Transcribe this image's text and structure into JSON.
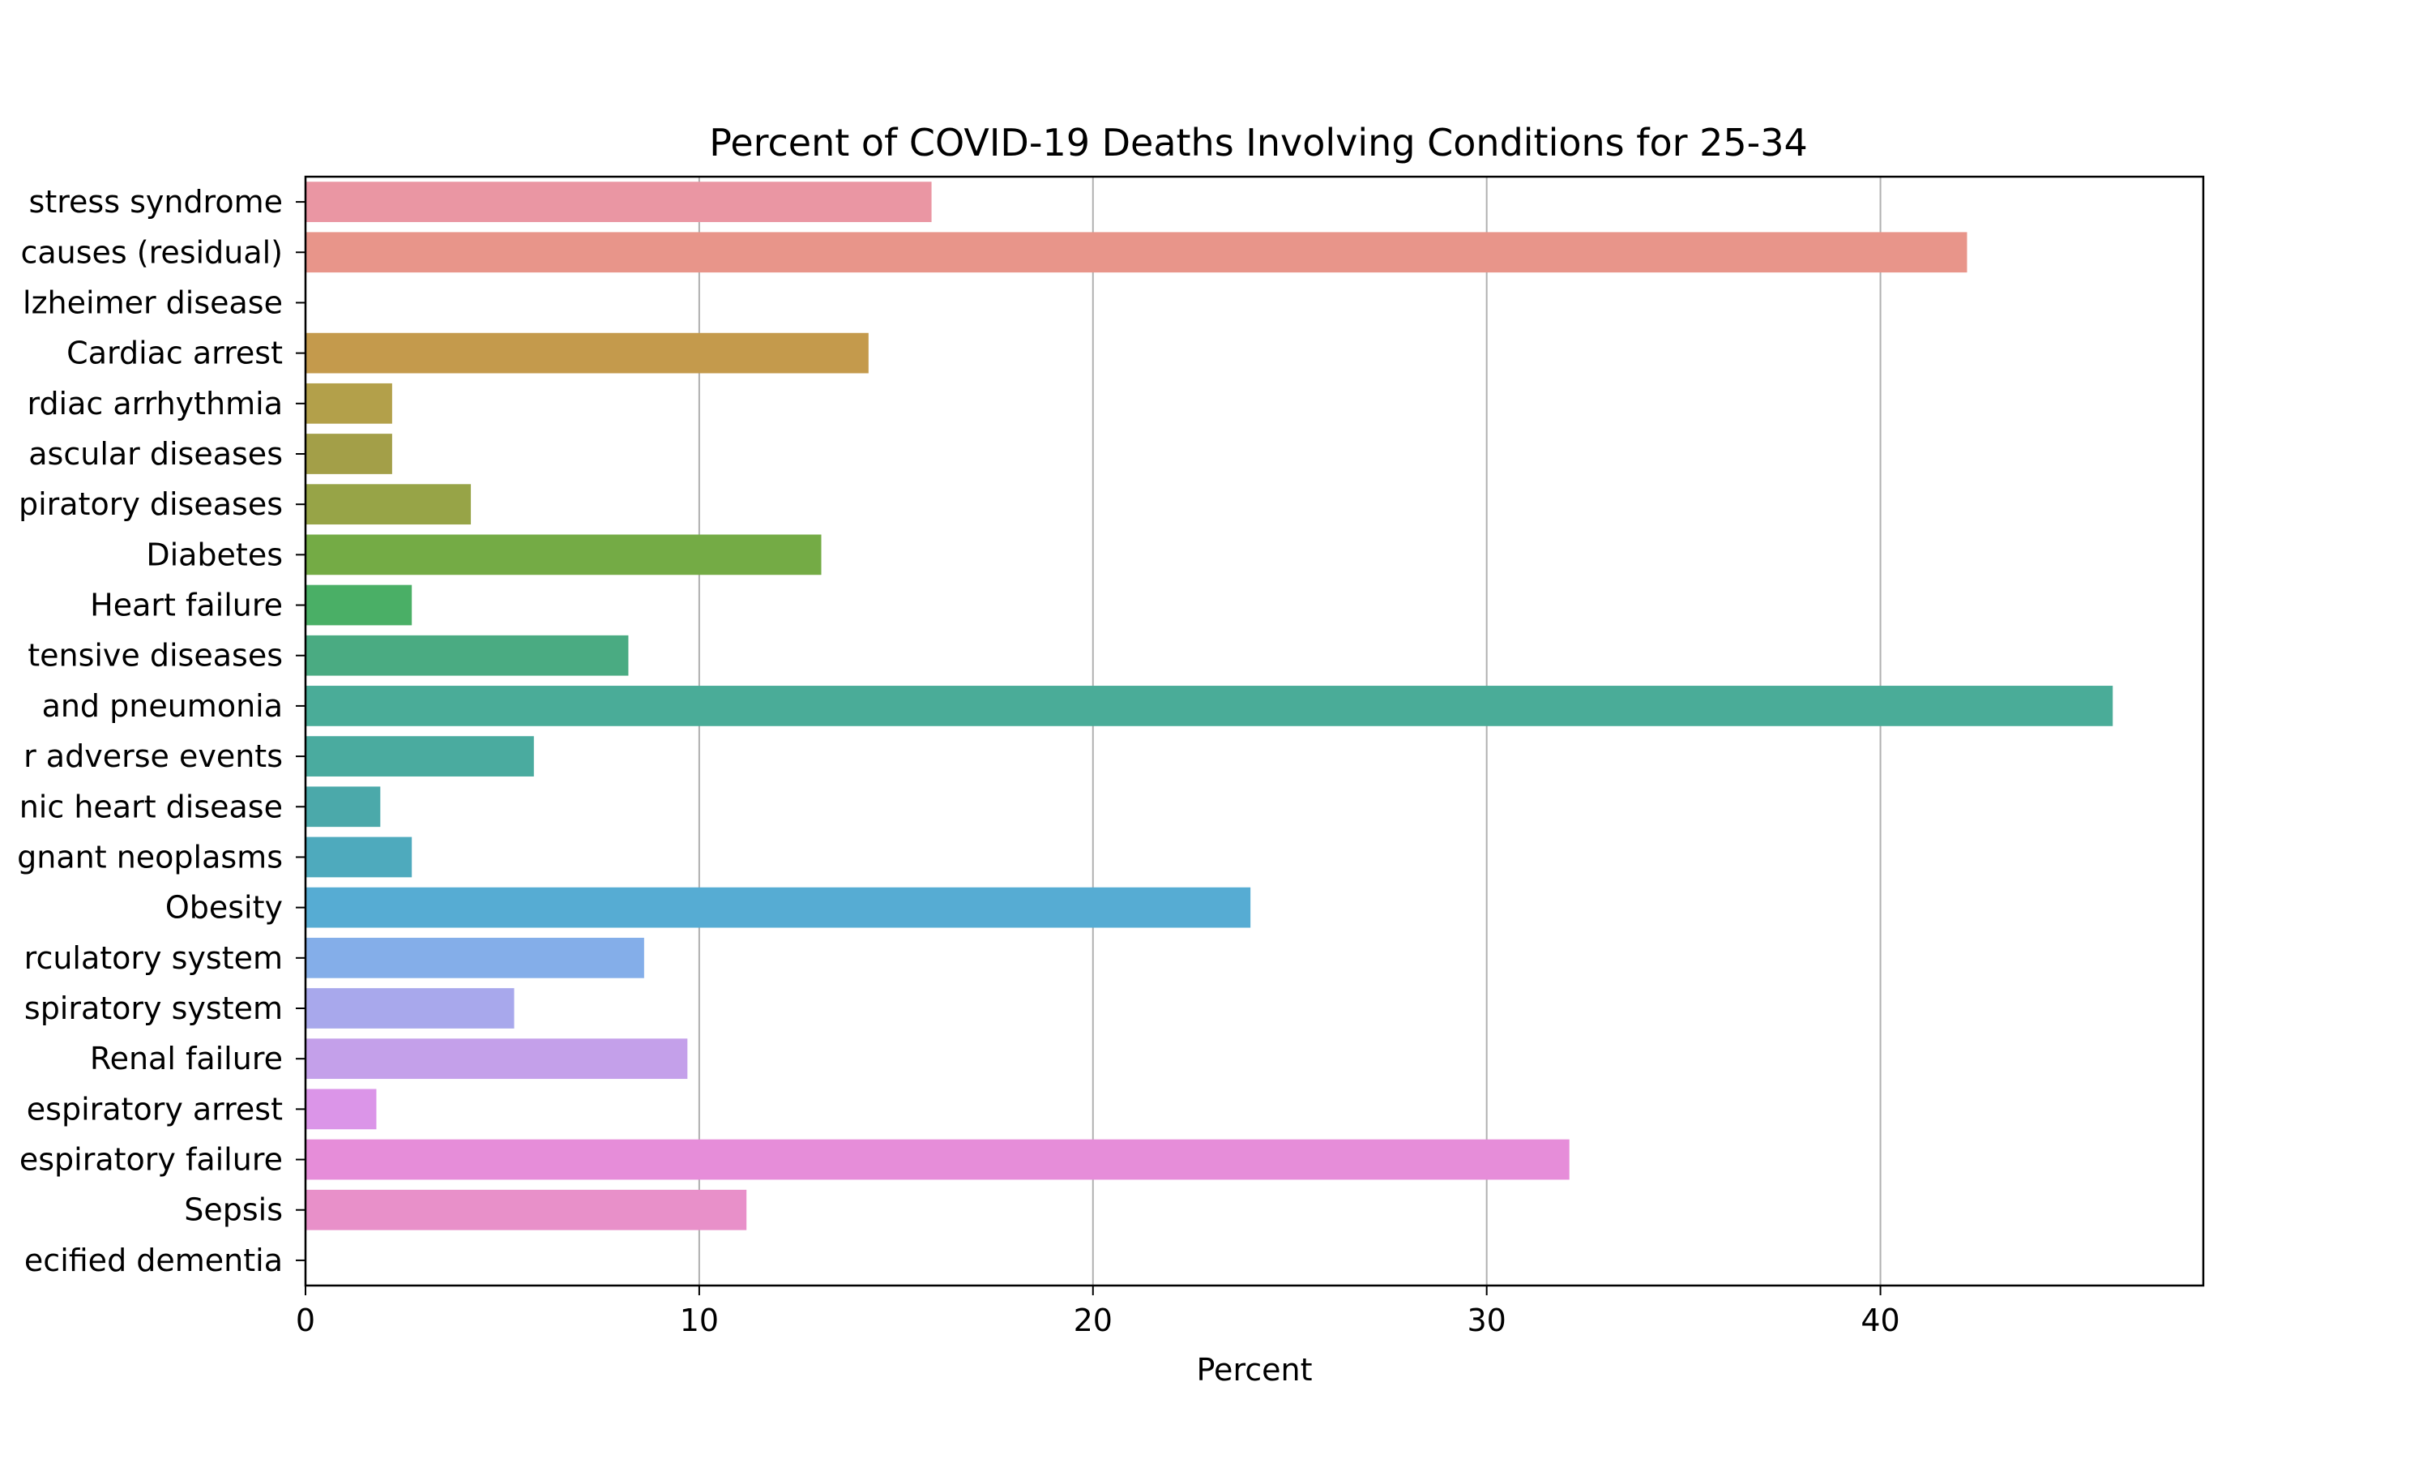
{
  "chart_data": {
    "type": "bar",
    "orientation": "horizontal",
    "title": "Percent of COVID-19 Deaths Involving Conditions for 25-34",
    "xlabel": "Percent",
    "ylabel": "",
    "xlim": [
      0,
      48.2
    ],
    "xticks": [
      "0",
      "10",
      "20",
      "30",
      "40"
    ],
    "grid": "vertical",
    "categories": [
      "Adult respiratory distress syndrome",
      "All other conditions and causes (residual)",
      "Alzheimer disease",
      "Cardiac arrest",
      "Cardiac arrhythmia",
      "Cerebrovascular diseases",
      "Chronic lower respiratory diseases",
      "Diabetes",
      "Heart failure",
      "Hypertensive diseases",
      "Influenza and pneumonia",
      "Intentional and unintentional injury, poisoning, and other adverse events",
      "Ischemic heart disease",
      "Malignant neoplasms",
      "Obesity",
      "Other diseases of the circulatory system",
      "Other diseases of the respiratory system",
      "Renal failure",
      "Respiratory arrest",
      "Respiratory failure",
      "Sepsis",
      "Vascular and unspecified dementia"
    ],
    "display_labels": [
      "stress syndrome",
      "causes (residual)",
      "lzheimer disease",
      "Cardiac arrest",
      "rdiac arrhythmia",
      "ascular diseases",
      "piratory diseases",
      "Diabetes",
      "Heart failure",
      "tensive diseases",
      "and pneumonia",
      "r adverse events",
      "nic heart disease",
      "gnant neoplasms",
      "Obesity",
      "rculatory system",
      "spiratory system",
      "Renal failure",
      "espiratory arrest",
      "espiratory failure",
      "Sepsis",
      "ecified dementia"
    ],
    "values": [
      15.9,
      42.2,
      0,
      14.3,
      2.2,
      2.2,
      4.2,
      13.1,
      2.7,
      8.2,
      45.9,
      5.8,
      1.9,
      2.7,
      24.0,
      8.6,
      5.3,
      9.7,
      1.8,
      32.1,
      11.2,
      0
    ],
    "colors": [
      "#ea96a3",
      "#e8958a",
      "#d99c5e",
      "#c49a4c",
      "#b3a04a",
      "#a39f48",
      "#97a447",
      "#74ab45",
      "#4aaf66",
      "#4aab82",
      "#4aac98",
      "#4aab9f",
      "#4ba9aa",
      "#4eaabd",
      "#56acd3",
      "#84aee9",
      "#a8a8ec",
      "#c4a0ea",
      "#db95e8",
      "#e68dd9",
      "#e890c9",
      "#ea93b5"
    ]
  }
}
